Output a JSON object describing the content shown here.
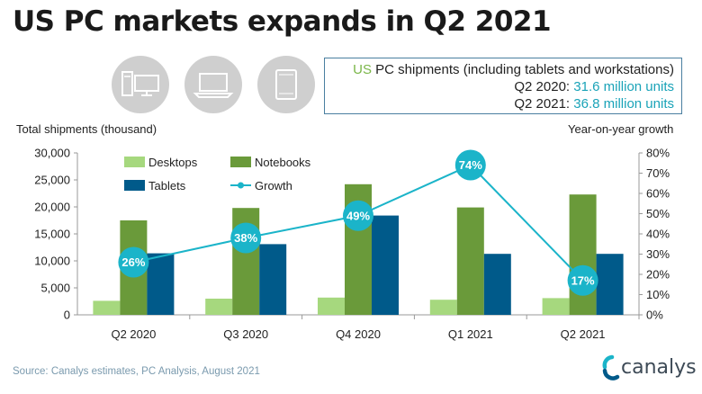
{
  "title": "US PC markets expands in Q2 2021",
  "infobox": {
    "line1_prefix": "US",
    "line1_rest": " PC shipments (including tablets and workstations)",
    "line2_label": "Q2 2020: ",
    "line2_value": "31.6 million units",
    "line3_label": "Q2 2021: ",
    "line3_value": "36.8 million units"
  },
  "icons": [
    "desktop-icon",
    "laptop-icon",
    "tablet-icon"
  ],
  "left_axis_title": "Total shipments (thousand)",
  "right_axis_title": "Year-on-year growth",
  "source": "Source: Canalys estimates, PC Analysis, August 2021",
  "logo_text": "canalys",
  "colors": {
    "desktops": "#a6d87e",
    "notebooks": "#6a9a3a",
    "tablets": "#005a8a",
    "growth": "#1bb4c9",
    "axis": "#999999"
  },
  "chart_data": {
    "type": "bar",
    "categories": [
      "Q2 2020",
      "Q3 2020",
      "Q4 2020",
      "Q1 2021",
      "Q2 2021"
    ],
    "series": [
      {
        "name": "Desktops",
        "values": [
          2600,
          3000,
          3200,
          2800,
          3100
        ]
      },
      {
        "name": "Notebooks",
        "values": [
          17500,
          19800,
          24200,
          19900,
          22300
        ]
      },
      {
        "name": "Tablets",
        "values": [
          11400,
          13100,
          18400,
          11300,
          11300
        ]
      }
    ],
    "growth_series": {
      "name": "Growth",
      "type": "line",
      "values": [
        26,
        38,
        49,
        74,
        17
      ],
      "labels": [
        "26%",
        "38%",
        "49%",
        "74%",
        "17%"
      ]
    },
    "left_axis": {
      "ylim": [
        0,
        30000
      ],
      "ticks": [
        "0",
        "5,000",
        "10,000",
        "15,000",
        "20,000",
        "25,000",
        "30,000"
      ]
    },
    "right_axis": {
      "ylim": [
        0,
        80
      ],
      "ticks": [
        "0%",
        "10%",
        "20%",
        "30%",
        "40%",
        "50%",
        "60%",
        "70%",
        "80%"
      ]
    },
    "legend": [
      "Desktops",
      "Notebooks",
      "Tablets",
      "Growth"
    ],
    "legend_placement": "top-left",
    "grid": false
  }
}
